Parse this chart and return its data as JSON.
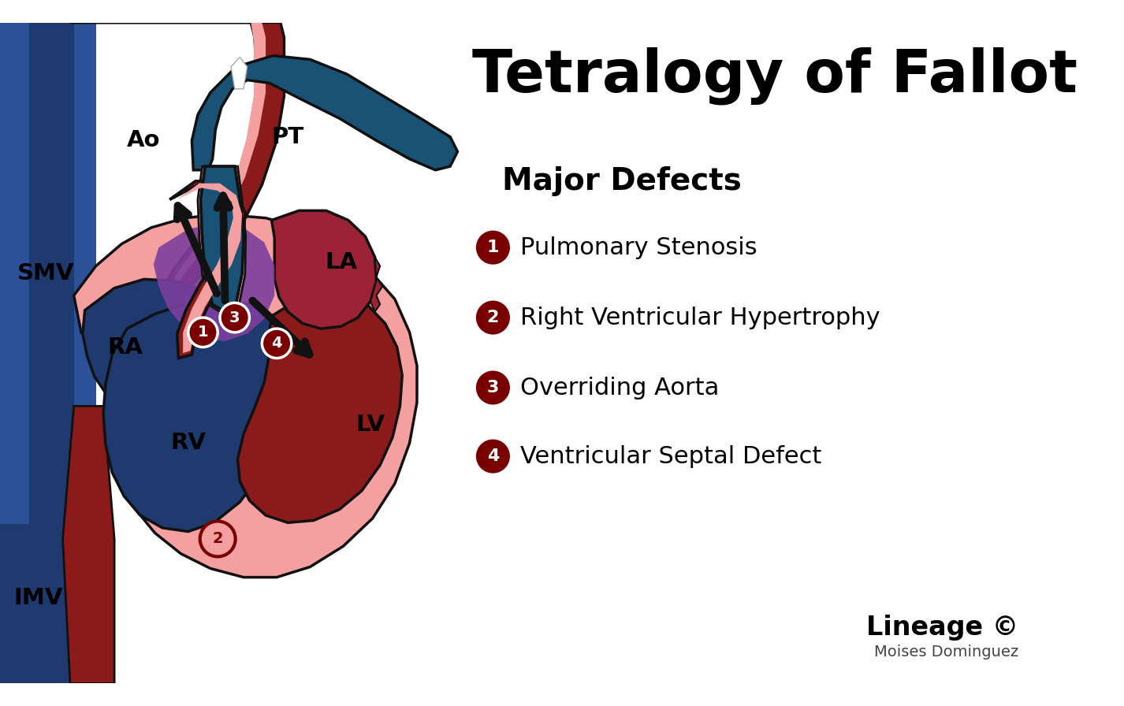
{
  "title": "Tetralogy of Fallot",
  "title_fontsize": 54,
  "bg_color": "#ffffff",
  "major_defects_title": "Major Defects",
  "defects": [
    {
      "num": "1",
      "text": "Pulmonary Stenosis"
    },
    {
      "num": "2",
      "text": "Right Ventricular Hypertrophy"
    },
    {
      "num": "3",
      "text": "Overriding Aorta"
    },
    {
      "num": "4",
      "text": "Ventricular Septal Defect"
    }
  ],
  "defect_circle_color": "#7a0000",
  "defect_text_color": "#000000",
  "defect_num_color": "#ffffff",
  "lineage_text": "Lineage ©",
  "author_text": "Moises Dominguez",
  "label_color": "#000000",
  "colors": {
    "dark_red": "#8B1A1A",
    "crimson": "#7a0000",
    "medium_red": "#B03060",
    "rv_red": "#9B2335",
    "blue_dark": "#1E3A6E",
    "blue_medium": "#2B5299",
    "blue_bright": "#1a5276",
    "pink": "#F4A0A0",
    "light_pink": "#f8c8c8",
    "purple": "#7B3F9E",
    "outline": "#111111",
    "arrow": "#111111",
    "white": "#ffffff"
  }
}
